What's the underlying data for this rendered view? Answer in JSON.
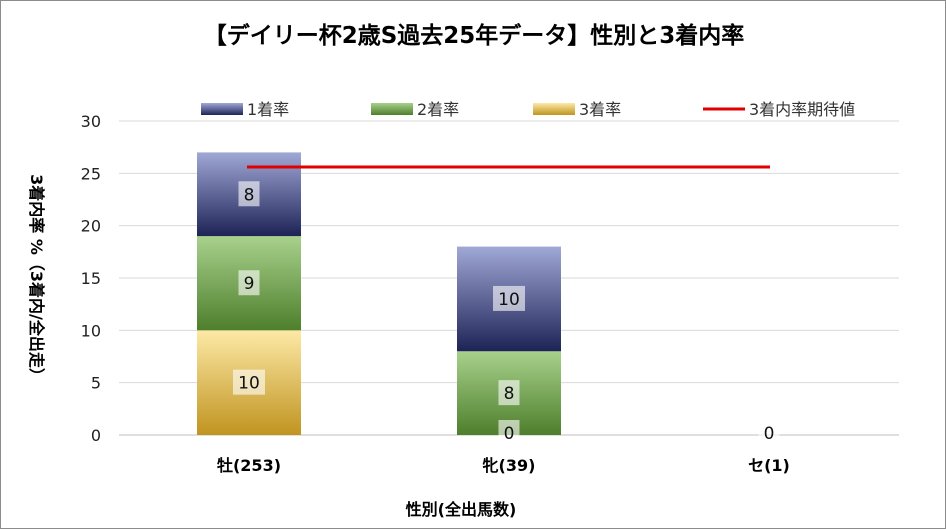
{
  "chart_data": {
    "type": "bar",
    "stacked": true,
    "title": "【デイリー杯2歳S過去25年データ】性別と3着内率",
    "xlabel": "性別(全出馬数)",
    "ylabel": "3着内率 %（3着内/全出走）",
    "ylim": [
      0,
      30
    ],
    "yticks": [
      0,
      5,
      10,
      15,
      20,
      25,
      30
    ],
    "grid": true,
    "legend_position": "top",
    "categories": [
      "牡(253)",
      "牝(39)",
      "セ(1)"
    ],
    "series": [
      {
        "name": "3着率",
        "values": [
          10,
          0,
          0
        ],
        "labels": [
          "10",
          "0",
          "0"
        ],
        "color_top": "#fde9a6",
        "color_bottom": "#c09420"
      },
      {
        "name": "2着率",
        "values": [
          9,
          8,
          0
        ],
        "labels": [
          "9",
          "8",
          ""
        ],
        "color_top": "#a8d18c",
        "color_bottom": "#4e7f2c"
      },
      {
        "name": "1着率",
        "values": [
          8,
          10,
          0
        ],
        "labels": [
          "8",
          "10",
          ""
        ],
        "color_top": "#a0a8d6",
        "color_bottom": "#1e2356"
      }
    ],
    "legend": [
      {
        "name": "1着率",
        "kind": "bar",
        "color_top": "#a0a8d6",
        "color_bottom": "#1e2356"
      },
      {
        "name": "2着率",
        "kind": "bar",
        "color_top": "#a8d18c",
        "color_bottom": "#4e7f2c"
      },
      {
        "name": "3着率",
        "kind": "bar",
        "color_top": "#fde9a6",
        "color_bottom": "#c09420"
      },
      {
        "name": "3着内率期待値",
        "kind": "line",
        "color": "#e00000"
      }
    ],
    "expected_line": {
      "name": "3着内率期待値",
      "value": 25.6,
      "color": "#e00000"
    }
  }
}
